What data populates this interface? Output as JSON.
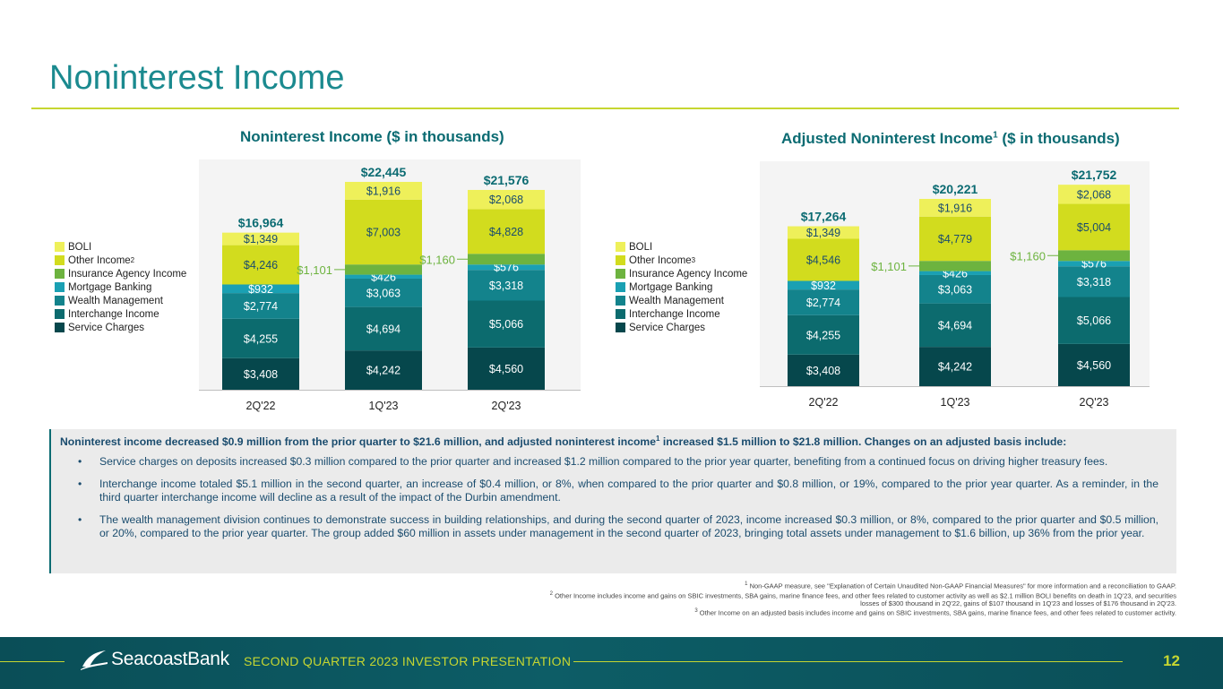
{
  "page_title": "Noninterest Income",
  "colors": {
    "title": "#1b8a8f",
    "rule": "#c6d631",
    "BOLI": "#eef05a",
    "Other Income": "#d2dc1e",
    "Insurance Agency Income": "#6db33f",
    "Mortgage Banking": "#1aa0b3",
    "Wealth Management": "#13838c",
    "Interchange Income": "#0c6b6e",
    "Service Charges": "#06474c"
  },
  "chart_data": [
    {
      "type": "bar",
      "stacked": true,
      "title": "Noninterest Income ($ in thousands)",
      "title_sup": "",
      "categories": [
        "2Q'22",
        "1Q'23",
        "2Q'23"
      ],
      "totals": [
        16964,
        22445,
        21576
      ],
      "total_labels": [
        "$16,964",
        "$22,445",
        "$21,576"
      ],
      "series": [
        {
          "name": "Service Charges",
          "values": [
            3408,
            4242,
            4560
          ],
          "labels": [
            "$3,408",
            "$4,242",
            "$4,560"
          ]
        },
        {
          "name": "Interchange Income",
          "values": [
            4255,
            4694,
            5066
          ],
          "labels": [
            "$4,255",
            "$4,694",
            "$5,066"
          ]
        },
        {
          "name": "Wealth Management",
          "values": [
            2774,
            3063,
            3318
          ],
          "labels": [
            "$2,774",
            "$3,063",
            "$3,318"
          ]
        },
        {
          "name": "Mortgage Banking",
          "values": [
            932,
            426,
            576
          ],
          "labels": [
            "$932",
            "$426",
            "$576"
          ]
        },
        {
          "name": "Insurance Agency Income",
          "values": [
            0,
            1101,
            1160
          ],
          "labels": [
            "",
            "$1,101",
            "$1,160"
          ]
        },
        {
          "name": "Other Income",
          "values": [
            4246,
            7003,
            4828
          ],
          "labels": [
            "$4,246",
            "$7,003",
            "$4,828"
          ]
        },
        {
          "name": "BOLI",
          "values": [
            1349,
            1916,
            2068
          ],
          "labels": [
            "$1,349",
            "$1,916",
            "$2,068"
          ]
        }
      ],
      "legend": [
        "BOLI",
        "Other Income",
        "Insurance Agency Income",
        "Mortgage Banking",
        "Wealth Management",
        "Interchange Income",
        "Service Charges"
      ],
      "legend_sup": {
        "Other Income": "2"
      },
      "ylim": [
        0,
        24500
      ]
    },
    {
      "type": "bar",
      "stacked": true,
      "title": "Adjusted Noninterest Income ($ in thousands)",
      "title_sup": "1",
      "categories": [
        "2Q'22",
        "1Q'23",
        "2Q'23"
      ],
      "totals": [
        17264,
        20221,
        21752
      ],
      "total_labels": [
        "$17,264",
        "$20,221",
        "$21,752"
      ],
      "series": [
        {
          "name": "Service Charges",
          "values": [
            3408,
            4242,
            4560
          ],
          "labels": [
            "$3,408",
            "$4,242",
            "$4,560"
          ]
        },
        {
          "name": "Interchange Income",
          "values": [
            4255,
            4694,
            5066
          ],
          "labels": [
            "$4,255",
            "$4,694",
            "$5,066"
          ]
        },
        {
          "name": "Wealth Management",
          "values": [
            2774,
            3063,
            3318
          ],
          "labels": [
            "$2,774",
            "$3,063",
            "$3,318"
          ]
        },
        {
          "name": "Mortgage Banking",
          "values": [
            932,
            426,
            576
          ],
          "labels": [
            "$932",
            "$426",
            "$576"
          ]
        },
        {
          "name": "Insurance Agency Income",
          "values": [
            0,
            1101,
            1160
          ],
          "labels": [
            "",
            "$1,101",
            "$1,160"
          ]
        },
        {
          "name": "Other Income",
          "values": [
            4546,
            4779,
            5004
          ],
          "labels": [
            "$4,546",
            "$4,779",
            "$5,004"
          ]
        },
        {
          "name": "BOLI",
          "values": [
            1349,
            1916,
            2068
          ],
          "labels": [
            "$1,349",
            "$1,916",
            "$2,068"
          ]
        }
      ],
      "legend": [
        "BOLI",
        "Other Income",
        "Insurance Agency Income",
        "Mortgage Banking",
        "Wealth Management",
        "Interchange Income",
        "Service Charges"
      ],
      "legend_sup": {
        "Other Income": "3"
      },
      "ylim": [
        0,
        24500
      ]
    }
  ],
  "summary": {
    "headline_pre": "Noninterest income decreased $0.9 million from the prior quarter to $21.6 million, and adjusted noninterest income",
    "headline_sup": "1",
    "headline_post": " increased $1.5 million to $21.8 million. Changes on an adjusted basis include:",
    "bullet_char": "•",
    "bullets": [
      "Service charges on deposits increased $0.3 million compared to the prior quarter and increased $1.2 million compared to the prior year quarter, benefiting from a continued focus on driving higher treasury fees.",
      "Interchange income totaled $5.1 million in the second quarter, an increase of $0.4 million, or 8%, when compared to the prior quarter and $0.8 million, or 19%, compared to the prior year quarter. As a reminder, in the third quarter interchange income will decline as a result of the impact of the Durbin amendment.",
      "The wealth management division continues to demonstrate success in building relationships, and during the second quarter of 2023, income increased $0.3 million, or 8%, compared to the prior quarter and $0.5 million, or 20%, compared to the prior year quarter. The group added $60 million in assets under management in the second quarter of 2023, bringing total assets under management to $1.6 billion, up 36% from the prior year."
    ]
  },
  "footnotes": [
    {
      "num": "1",
      "text": " Non-GAAP measure, see \"Explanation of Certain Unaudited Non-GAAP Financial Measures\" for more information and a reconciliation to GAAP."
    },
    {
      "num": "2",
      "text": " Other Income includes income and gains on SBIC investments, SBA gains, marine finance fees, and other fees related to customer activity as well as $2.1 million BOLI benefits on death in 1Q'23, and securities losses of $300 thousand in 2Q'22, gains of $107 thousand in 1Q'23 and losses of $176 thousand in 2Q'23."
    },
    {
      "num": "3",
      "text": " Other Income on an adjusted basis includes income and gains on SBIC investments, SBA gains, marine finance fees, and other fees related to customer activity."
    }
  ],
  "footer": {
    "logo_text": "SeacoastBank",
    "logo_icon": "seacoast-wave-icon",
    "subtitle": "SECOND QUARTER 2023 INVESTOR PRESENTATION",
    "page_number": "12"
  }
}
